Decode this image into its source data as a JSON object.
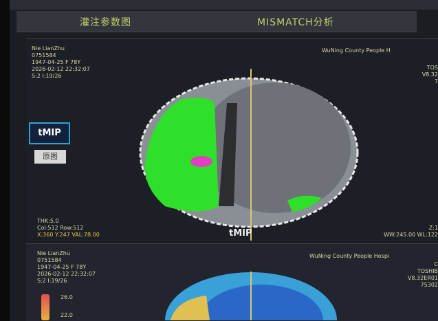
{
  "tabs": [
    {
      "label": "灌注参数图"
    },
    {
      "label": "MISMATCH分析"
    }
  ],
  "top_view": {
    "patient_info": [
      "Nie LianZhu",
      "0751584",
      "1947-04-25 F 78Y",
      "2026-02-12 22:32:07",
      "S:2 I:19/26"
    ],
    "hospital": "WuNing County People H",
    "right_info": [
      "TOS",
      "V8.32",
      "7"
    ],
    "bottom_left": [
      "THK:5.0",
      "Col:512 Row:512"
    ],
    "cursor_readout": "X:360 Y:247 VAL:78.00",
    "view_label": "tMIP",
    "bottom_right": [
      "Z:1",
      "WW:245.00 WL:122"
    ]
  },
  "buttons": {
    "tmip": "tMIP",
    "original": "原图"
  },
  "bottom_view": {
    "patient_info": [
      "Nie LianZhu",
      "0751584",
      "1947-04-25 F 78Y",
      "2026-02-12 22:32:07",
      "S:2 I:19/26"
    ],
    "hospital": "WuNing County People Hospi",
    "right_info": [
      "C",
      "TOSHIB",
      "V8.32ER01",
      "75302"
    ],
    "colorbar_labels": [
      "26.0",
      "22.0"
    ]
  },
  "colors": {
    "accent": "#2ea2d8",
    "tab_text": "#c7cf6a",
    "lesion": "#2fe02a",
    "core": "#e040c0"
  }
}
